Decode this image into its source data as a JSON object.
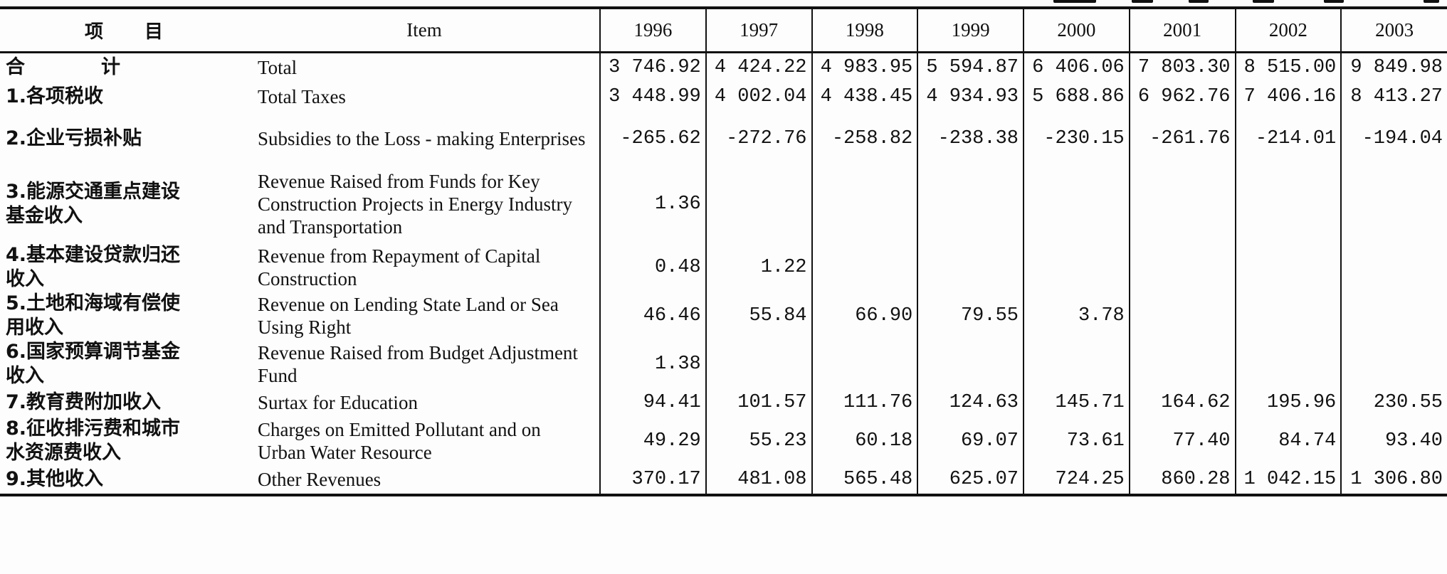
{
  "header": {
    "item_cn": "项　　目",
    "item_en": "Item",
    "years": [
      "1996",
      "1997",
      "1998",
      "1999",
      "2000",
      "2001",
      "2002",
      "2003"
    ]
  },
  "rows": [
    {
      "cn": "合　计",
      "en": "Total",
      "values": [
        "3 746.92",
        "4 424.22",
        "4 983.95",
        "5 594.87",
        "6 406.06",
        "7 803.30",
        "8 515.00",
        "9 849.98"
      ]
    },
    {
      "cn": "1.各项税收",
      "en": "Total Taxes",
      "values": [
        "3 448.99",
        "4 002.04",
        "4 438.45",
        "4 934.93",
        "5 688.86",
        "6 962.76",
        "7 406.16",
        "8 413.27"
      ]
    },
    {
      "cn": "2.企业亏损补贴",
      "en": "Subsidies to the Loss - making Enterprises",
      "values": [
        "-265.62",
        "-272.76",
        "-258.82",
        "-238.38",
        "-230.15",
        "-261.76",
        "-214.01",
        "-194.04"
      ]
    },
    {
      "cn": "3.能源交通重点建设\n  基金收入",
      "en": "Revenue Raised from Funds for Key Construction Projects in Energy Industry and Transportation",
      "values": [
        "1.36",
        "",
        "",
        "",
        "",
        "",
        "",
        ""
      ]
    },
    {
      "cn": "4.基本建设贷款归还\n  收入",
      "en": "Revenue from Repayment of Capital Construction",
      "values": [
        "0.48",
        "1.22",
        "",
        "",
        "",
        "",
        "",
        ""
      ]
    },
    {
      "cn": "5.土地和海域有偿使\n  用收入",
      "en": "Revenue on Lending State Land or Sea Using Right",
      "values": [
        "46.46",
        "55.84",
        "66.90",
        "79.55",
        "3.78",
        "",
        "",
        ""
      ]
    },
    {
      "cn": "6.国家预算调节基金\n  收入",
      "en": "Revenue Raised from Budget Adjustment Fund",
      "values": [
        "1.38",
        "",
        "",
        "",
        "",
        "",
        "",
        ""
      ]
    },
    {
      "cn": "7.教育费附加收入",
      "en": "Surtax for Education",
      "values": [
        "94.41",
        "101.57",
        "111.76",
        "124.63",
        "145.71",
        "164.62",
        "195.96",
        "230.55"
      ]
    },
    {
      "cn": "8.征收排污费和城市\n  水资源费收入",
      "en": "Charges on Emitted Pollutant and on Urban Water Resource",
      "values": [
        "49.29",
        "55.23",
        "60.18",
        "69.07",
        "73.61",
        "77.40",
        "84.74",
        "93.40"
      ]
    },
    {
      "cn": "9.其他收入",
      "en": "Other Revenues",
      "values": [
        "370.17",
        "481.08",
        "565.48",
        "625.07",
        "724.25",
        "860.28",
        "1 042.15",
        "1 306.80"
      ]
    }
  ]
}
